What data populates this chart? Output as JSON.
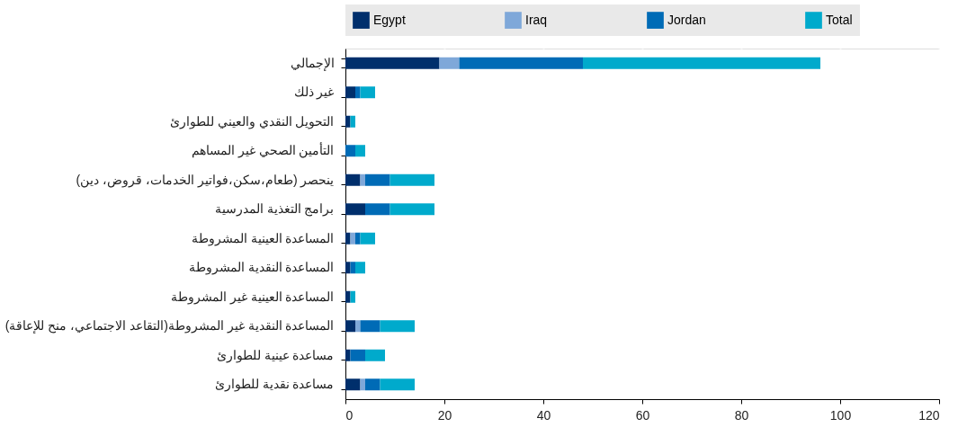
{
  "chart_data": {
    "type": "bar",
    "orientation": "horizontal",
    "stacked": true,
    "categories": [
      "الإجمالي",
      "غير ذلك",
      "التحويل النقدي والعيني للطوارئ",
      "التأمين الصحي غير المساهم",
      "ينحصر (طعام،سكن،فواتير الخدمات، قروض، دين)",
      "برامج التغذية المدرسية",
      "المساعدة العينية المشروطة",
      "المساعدة النقدية المشروطة",
      "المساعدة العينية غير المشروطة",
      "المساعدة النقدية غير المشروطة(التقاعد الاجتماعي، منح للإعاقة)",
      "مساعدة عينية للطوارئ",
      "مساعدة نقدية للطوارئ"
    ],
    "series": [
      {
        "name": "Egypt",
        "color": "#002f6c",
        "values": [
          19,
          2,
          1,
          0,
          3,
          4,
          1,
          1,
          1,
          2,
          1,
          3
        ]
      },
      {
        "name": "Iraq",
        "color": "#7fa8d9",
        "values": [
          4,
          0,
          0,
          0,
          1,
          0,
          1,
          0,
          0,
          1,
          0,
          1
        ]
      },
      {
        "name": "Jordan",
        "color": "#006bb6",
        "values": [
          25,
          1,
          0,
          2,
          5,
          5,
          1,
          1,
          0,
          4,
          3,
          3
        ]
      },
      {
        "name": "Total",
        "color": "#00aacc",
        "values": [
          48,
          3,
          1,
          2,
          9,
          9,
          3,
          2,
          1,
          7,
          4,
          7
        ]
      }
    ],
    "xlim": [
      0,
      120
    ],
    "xticks": [
      0,
      20,
      40,
      60,
      80,
      100,
      120
    ],
    "grid": true,
    "legend": "top"
  }
}
